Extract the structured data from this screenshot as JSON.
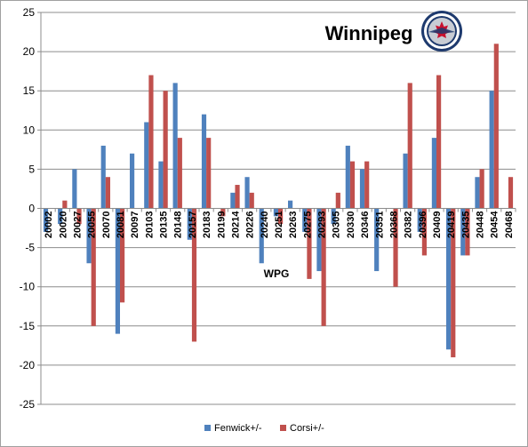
{
  "chart_data": {
    "type": "bar",
    "title": "Winnipeg",
    "xlabel": "WPG",
    "ylabel": "",
    "ylim": [
      -25,
      25
    ],
    "yticks": [
      -25,
      -20,
      -15,
      -10,
      -5,
      0,
      5,
      10,
      15,
      20,
      25
    ],
    "grid": true,
    "legend_position": "bottom",
    "logo": "winnipeg-jets-logo",
    "colors": {
      "Fenwick+/-": "#4f81bd",
      "Corsi+/-": "#c0504d"
    },
    "categories": [
      "20002",
      "20020",
      "20027",
      "20055",
      "20070",
      "20081",
      "20097",
      "20103",
      "20135",
      "20148",
      "20157",
      "20183",
      "20199",
      "20214",
      "20226",
      "20240",
      "20251",
      "20263",
      "20275",
      "20293",
      "20305",
      "20330",
      "20346",
      "20351",
      "20368",
      "20382",
      "20396",
      "20409",
      "20419",
      "20435",
      "20448",
      "20454",
      "20468"
    ],
    "series": [
      {
        "name": "Fenwick+/-",
        "values": [
          -3,
          -2,
          5,
          -7,
          8,
          -16,
          7,
          11,
          6,
          16,
          -4,
          12,
          0,
          2,
          4,
          -7,
          -1,
          1,
          -3,
          -8,
          -2,
          8,
          5,
          -8,
          0,
          7,
          -3,
          9,
          -18,
          -6,
          4,
          15,
          0
        ]
      },
      {
        "name": "Corsi+/-",
        "values": [
          0,
          1,
          -2,
          -15,
          4,
          -12,
          0,
          17,
          15,
          9,
          -17,
          9,
          -1,
          3,
          2,
          0,
          -2,
          0,
          -9,
          -15,
          2,
          6,
          6,
          0,
          -10,
          16,
          -6,
          17,
          -19,
          -6,
          5,
          21,
          4
        ]
      }
    ]
  }
}
